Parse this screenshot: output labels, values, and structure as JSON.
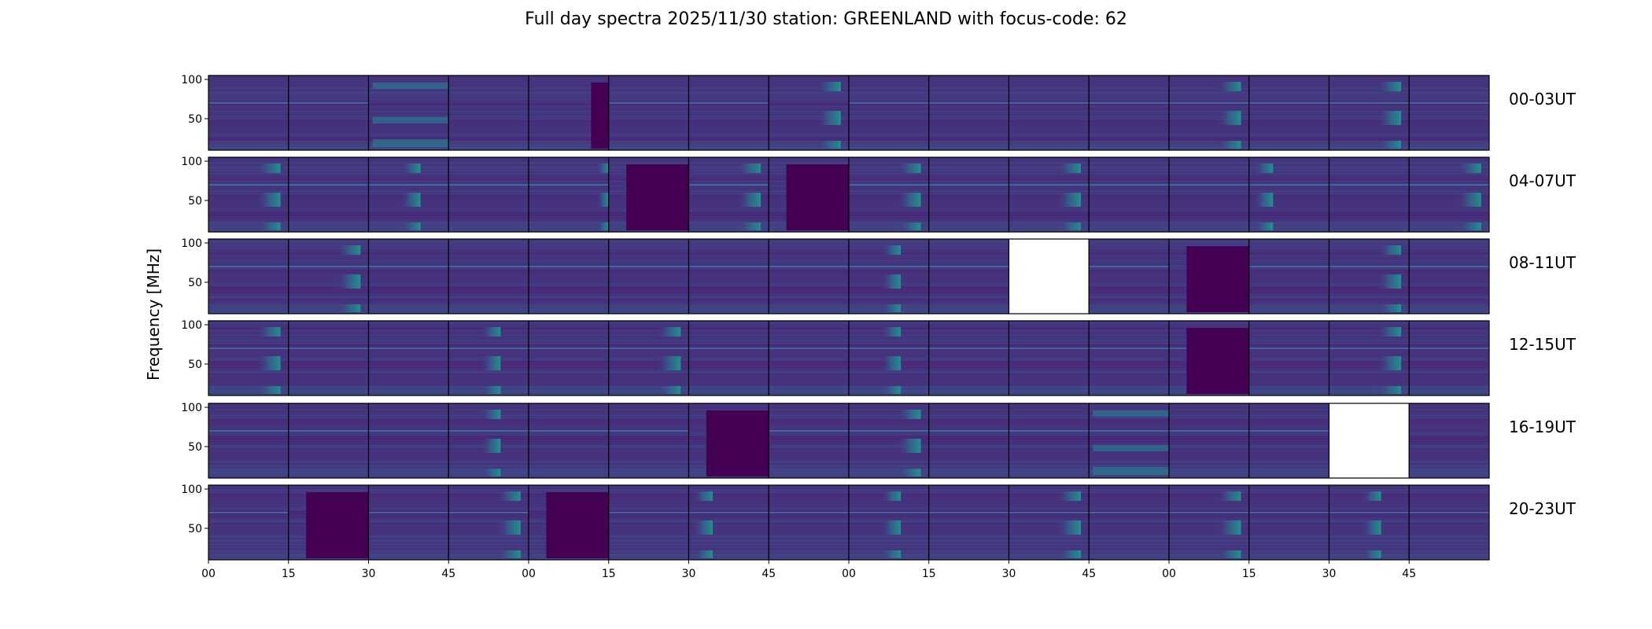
{
  "chart_data": {
    "type": "heatmap",
    "title": "Full day spectra 2025/11/30 station: GREENLAND with focus-code: 62",
    "xlabel": "",
    "ylabel": "Frequency [MHz]",
    "ylim": [
      10,
      105
    ],
    "yticks": [
      50,
      100
    ],
    "xtick_labels": [
      "00",
      "15",
      "30",
      "45",
      "00",
      "15",
      "30",
      "45",
      "00",
      "15",
      "30",
      "45",
      "00",
      "15",
      "30",
      "45"
    ],
    "colormap": "viridis",
    "hours_per_row": 4,
    "panels_per_hour": 4,
    "minutes_per_panel": 15,
    "rows": [
      {
        "label": "00-03UT",
        "panels": [
          {
            "burst": "none",
            "line70": true
          },
          {
            "burst": "none",
            "line70": true
          },
          {
            "burst": "wide",
            "line70": false
          },
          {
            "burst": "none",
            "line70": false
          },
          {
            "burst": "partial-blank",
            "line70": false
          },
          {
            "burst": "none",
            "line70": true
          },
          {
            "burst": "none",
            "line70": true
          },
          {
            "burst": "late",
            "line70": false
          },
          {
            "burst": "none",
            "line70": true
          },
          {
            "burst": "none",
            "line70": true
          },
          {
            "burst": "none",
            "line70": true
          },
          {
            "burst": "none",
            "line70": true
          },
          {
            "burst": "late",
            "line70": true
          },
          {
            "burst": "none",
            "line70": true
          },
          {
            "burst": "late",
            "line70": true
          },
          {
            "burst": "none",
            "line70": true
          }
        ]
      },
      {
        "label": "04-07UT",
        "panels": [
          {
            "burst": "late",
            "line70": true
          },
          {
            "burst": "none",
            "line70": true
          },
          {
            "burst": "mid",
            "line70": true
          },
          {
            "burst": "none",
            "line70": true
          },
          {
            "burst": "edge",
            "line70": true
          },
          {
            "burst": "dark-block",
            "line70": false
          },
          {
            "burst": "late",
            "line70": true
          },
          {
            "burst": "dark-block",
            "line70": false
          },
          {
            "burst": "late",
            "line70": true
          },
          {
            "burst": "none",
            "line70": true
          },
          {
            "burst": "late",
            "line70": true
          },
          {
            "burst": "none",
            "line70": true
          },
          {
            "burst": "none",
            "line70": true
          },
          {
            "burst": "early",
            "line70": true
          },
          {
            "burst": "none",
            "line70": true
          },
          {
            "burst": "late",
            "line70": true
          }
        ]
      },
      {
        "label": "08-11UT",
        "panels": [
          {
            "burst": "none",
            "line70": true
          },
          {
            "burst": "late",
            "line70": true
          },
          {
            "burst": "none",
            "line70": true
          },
          {
            "burst": "none",
            "line70": true
          },
          {
            "burst": "none",
            "line70": true
          },
          {
            "burst": "none",
            "line70": true
          },
          {
            "burst": "none",
            "line70": true
          },
          {
            "burst": "none",
            "line70": true
          },
          {
            "burst": "mid",
            "line70": true
          },
          {
            "burst": "none",
            "line70": true
          },
          {
            "burst": "missing",
            "line70": false
          },
          {
            "burst": "none",
            "line70": true
          },
          {
            "burst": "dark-block",
            "line70": false
          },
          {
            "burst": "none",
            "line70": true
          },
          {
            "burst": "late",
            "line70": true
          },
          {
            "burst": "none",
            "line70": true
          }
        ]
      },
      {
        "label": "12-15UT",
        "panels": [
          {
            "burst": "late",
            "line70": true
          },
          {
            "burst": "none",
            "line70": true
          },
          {
            "burst": "none",
            "line70": true
          },
          {
            "burst": "mid",
            "line70": true
          },
          {
            "burst": "none",
            "line70": true
          },
          {
            "burst": "late",
            "line70": true
          },
          {
            "burst": "none",
            "line70": true
          },
          {
            "burst": "none",
            "line70": true
          },
          {
            "burst": "mid",
            "line70": true
          },
          {
            "burst": "none",
            "line70": true
          },
          {
            "burst": "none",
            "line70": true
          },
          {
            "burst": "none",
            "line70": true
          },
          {
            "burst": "dark-block",
            "line70": true
          },
          {
            "burst": "none",
            "line70": true
          },
          {
            "burst": "late",
            "line70": true
          },
          {
            "burst": "none",
            "line70": true
          }
        ]
      },
      {
        "label": "16-19UT",
        "panels": [
          {
            "burst": "none",
            "line70": true
          },
          {
            "burst": "none",
            "line70": true
          },
          {
            "burst": "none",
            "line70": true
          },
          {
            "burst": "mid",
            "line70": true
          },
          {
            "burst": "none",
            "line70": true
          },
          {
            "burst": "none",
            "line70": true
          },
          {
            "burst": "dark-block",
            "line70": false
          },
          {
            "burst": "none",
            "line70": true
          },
          {
            "burst": "late",
            "line70": true
          },
          {
            "burst": "none",
            "line70": true
          },
          {
            "burst": "none",
            "line70": true
          },
          {
            "burst": "wide",
            "line70": true
          },
          {
            "burst": "none",
            "line70": true
          },
          {
            "burst": "none",
            "line70": true
          },
          {
            "burst": "missing",
            "line70": false
          },
          {
            "burst": "none",
            "line70": false
          }
        ]
      },
      {
        "label": "20-23UT",
        "panels": [
          {
            "burst": "none",
            "line70": true
          },
          {
            "burst": "dark-block",
            "line70": false
          },
          {
            "burst": "none",
            "line70": true
          },
          {
            "burst": "late",
            "line70": true
          },
          {
            "burst": "dark-block",
            "line70": false
          },
          {
            "burst": "none",
            "line70": true
          },
          {
            "burst": "early",
            "line70": true
          },
          {
            "burst": "none",
            "line70": true
          },
          {
            "burst": "mid",
            "line70": true
          },
          {
            "burst": "none",
            "line70": true
          },
          {
            "burst": "late",
            "line70": true
          },
          {
            "burst": "none",
            "line70": true
          },
          {
            "burst": "late",
            "line70": true
          },
          {
            "burst": "none",
            "line70": true
          },
          {
            "burst": "mid",
            "line70": true
          },
          {
            "burst": "none",
            "line70": true
          }
        ]
      }
    ],
    "missing_panels": [
      {
        "row": "08-11UT",
        "hour": "10",
        "minute": "30"
      },
      {
        "row": "16-19UT",
        "hour": "19",
        "minute": "30"
      }
    ],
    "colors": {
      "low": "#440154",
      "background": "#46337e",
      "mid": "#31688e",
      "high": "#35b779",
      "peak": "#fde725"
    }
  }
}
